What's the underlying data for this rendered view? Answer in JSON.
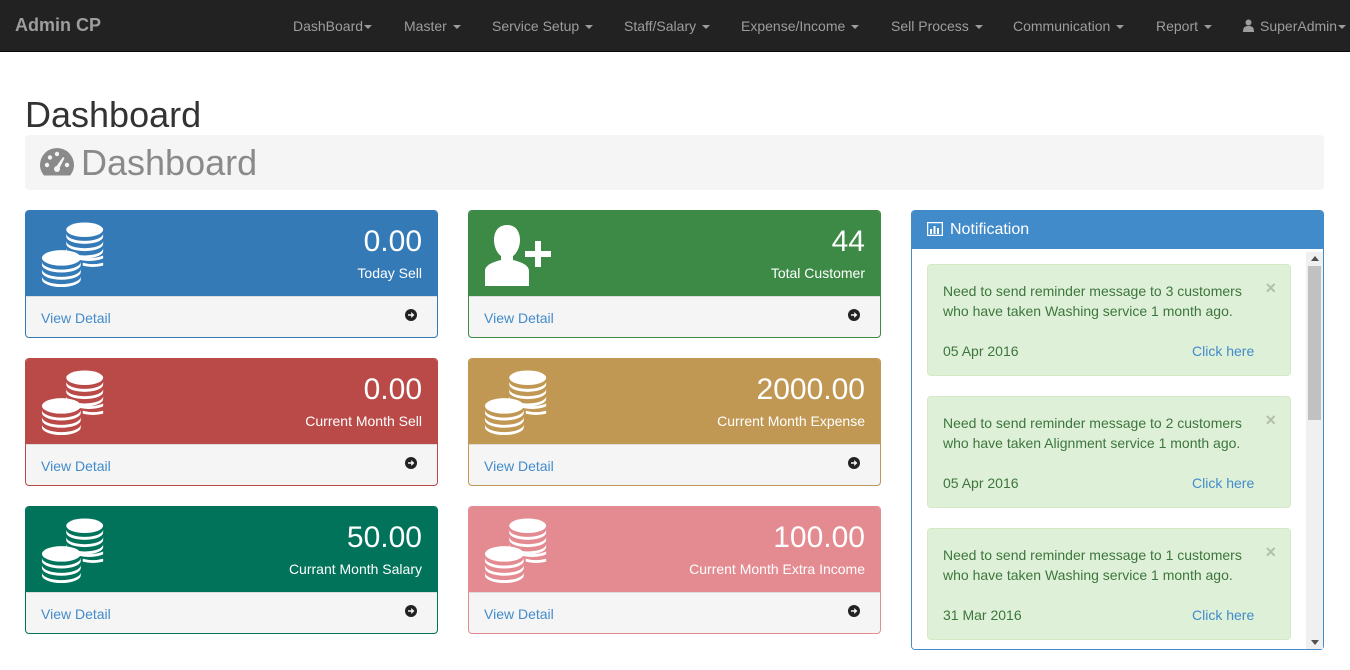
{
  "navbar": {
    "brand": "Admin CP",
    "items": [
      {
        "label": "DashBoard",
        "icon": "caret-down-icon"
      },
      {
        "label": "Master",
        "icon": "caret-down-icon"
      },
      {
        "label": "Service Setup",
        "icon": "caret-down-icon"
      },
      {
        "label": "Staff/Salary",
        "icon": "caret-down-icon"
      },
      {
        "label": "Expense/Income",
        "icon": "caret-down-icon"
      },
      {
        "label": "Sell Process",
        "icon": "caret-down-icon"
      },
      {
        "label": "Communication",
        "icon": "caret-down-icon"
      },
      {
        "label": "Report",
        "icon": "caret-down-icon"
      }
    ],
    "user": {
      "label": "SuperAdmin",
      "icon": "user-icon"
    }
  },
  "page": {
    "title": "Dashboard",
    "breadcrumb": "Dashboard",
    "breadcrumb_icon": "dashboard-gauge-icon"
  },
  "cards": [
    {
      "value": "0.00",
      "label": "Today Sell",
      "link": "View Detail",
      "icon": "coins-icon",
      "color": "#337ab7"
    },
    {
      "value": "44",
      "label": "Total Customer",
      "link": "View Detail",
      "icon": "add-user-icon",
      "color": "#3c8a45"
    },
    {
      "value": "0.00",
      "label": "Current Month Sell",
      "link": "View Detail",
      "icon": "coins-icon",
      "color": "#b94a48"
    },
    {
      "value": "2000.00",
      "label": "Current Month Expense",
      "link": "View Detail",
      "icon": "coins-icon",
      "color": "#c09853"
    },
    {
      "value": "50.00",
      "label": "Currant Month Salary",
      "link": "View Detail",
      "icon": "coins-icon",
      "color": "#00735a"
    },
    {
      "value": "100.00",
      "label": "Current Month Extra Income",
      "link": "View Detail",
      "icon": "coins-icon",
      "color": "#e48b92"
    }
  ],
  "notification": {
    "title": "Notification",
    "icon": "bar-chart-icon",
    "items": [
      {
        "message": "Need to send reminder message to 3 customers who have taken Washing service 1 month ago.",
        "date": "05 Apr 2016",
        "link": "Click here",
        "close": "×"
      },
      {
        "message": "Need to send reminder message to 2 customers who have taken Alignment service 1 month ago.",
        "date": "05 Apr 2016",
        "link": "Click here",
        "close": "×"
      },
      {
        "message": "Need to send reminder message to 1 customers who have taken Washing service 1 month ago.",
        "date": "31 Mar 2016",
        "link": "Click here",
        "close": "×"
      }
    ]
  }
}
